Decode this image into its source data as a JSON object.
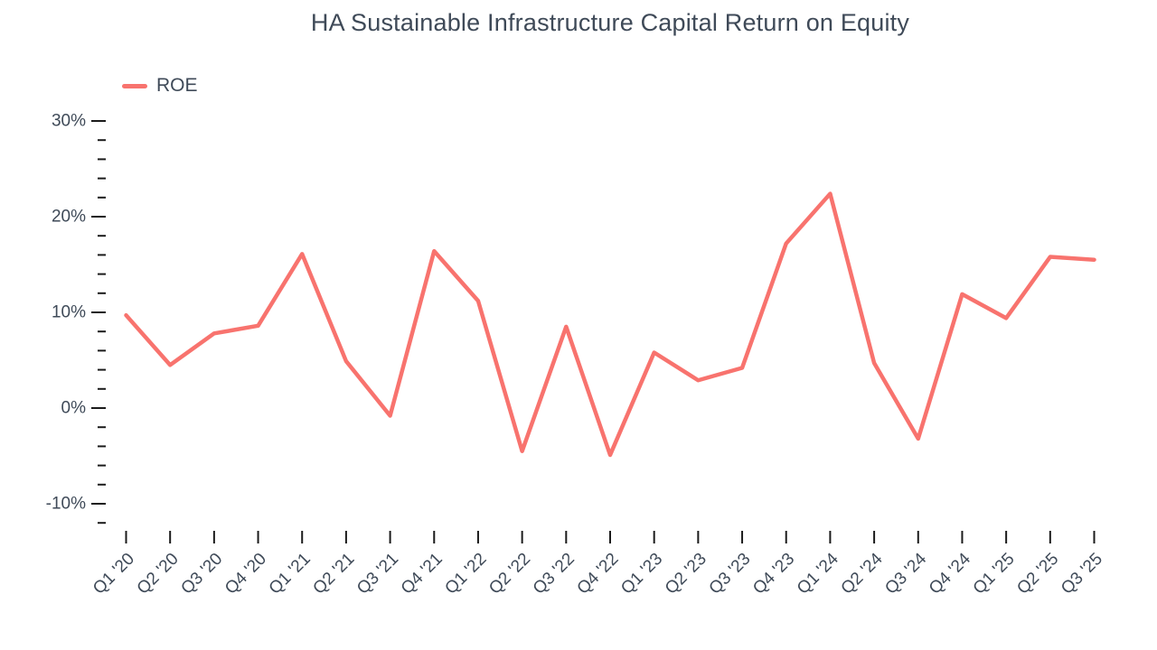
{
  "header": {
    "title": "HA Sustainable Infrastructure Capital Return on Equity"
  },
  "legend": {
    "items": [
      {
        "label": "ROE",
        "color": "#f8736e"
      }
    ]
  },
  "chart_data": {
    "type": "line",
    "title": "HA Sustainable Infrastructure Capital Return on Equity",
    "categories": [
      "Q1 '20",
      "Q2 '20",
      "Q3 '20",
      "Q4 '20",
      "Q1 '21",
      "Q2 '21",
      "Q3 '21",
      "Q4 '21",
      "Q1 '22",
      "Q2 '22",
      "Q3 '22",
      "Q4 '22",
      "Q1 '23",
      "Q2 '23",
      "Q3 '23",
      "Q4 '23",
      "Q1 '24",
      "Q2 '24",
      "Q3 '24",
      "Q4 '24",
      "Q1 '25",
      "Q2 '25",
      "Q3 '25"
    ],
    "series": [
      {
        "name": "ROE",
        "color": "#f8736e",
        "values": [
          9.7,
          4.5,
          7.8,
          8.6,
          16.1,
          4.9,
          -0.8,
          16.4,
          11.2,
          -4.5,
          8.5,
          -4.9,
          5.8,
          2.9,
          4.2,
          17.2,
          22.4,
          4.7,
          -3.2,
          11.9,
          9.4,
          15.8,
          15.5
        ]
      }
    ],
    "xlabel": "",
    "ylabel": "",
    "y_axis": {
      "unit": "%",
      "min": -12,
      "max": 30,
      "major_step": 10,
      "minor_step": 2,
      "major_labels": [
        "30%",
        "20%",
        "10%",
        "0%",
        "-10%"
      ]
    },
    "grid": false,
    "legend_position": "top-left"
  },
  "colors": {
    "series": "#f8736e",
    "text": "#3f4a58",
    "tick": "#1b1b1b",
    "background": "#ffffff"
  }
}
